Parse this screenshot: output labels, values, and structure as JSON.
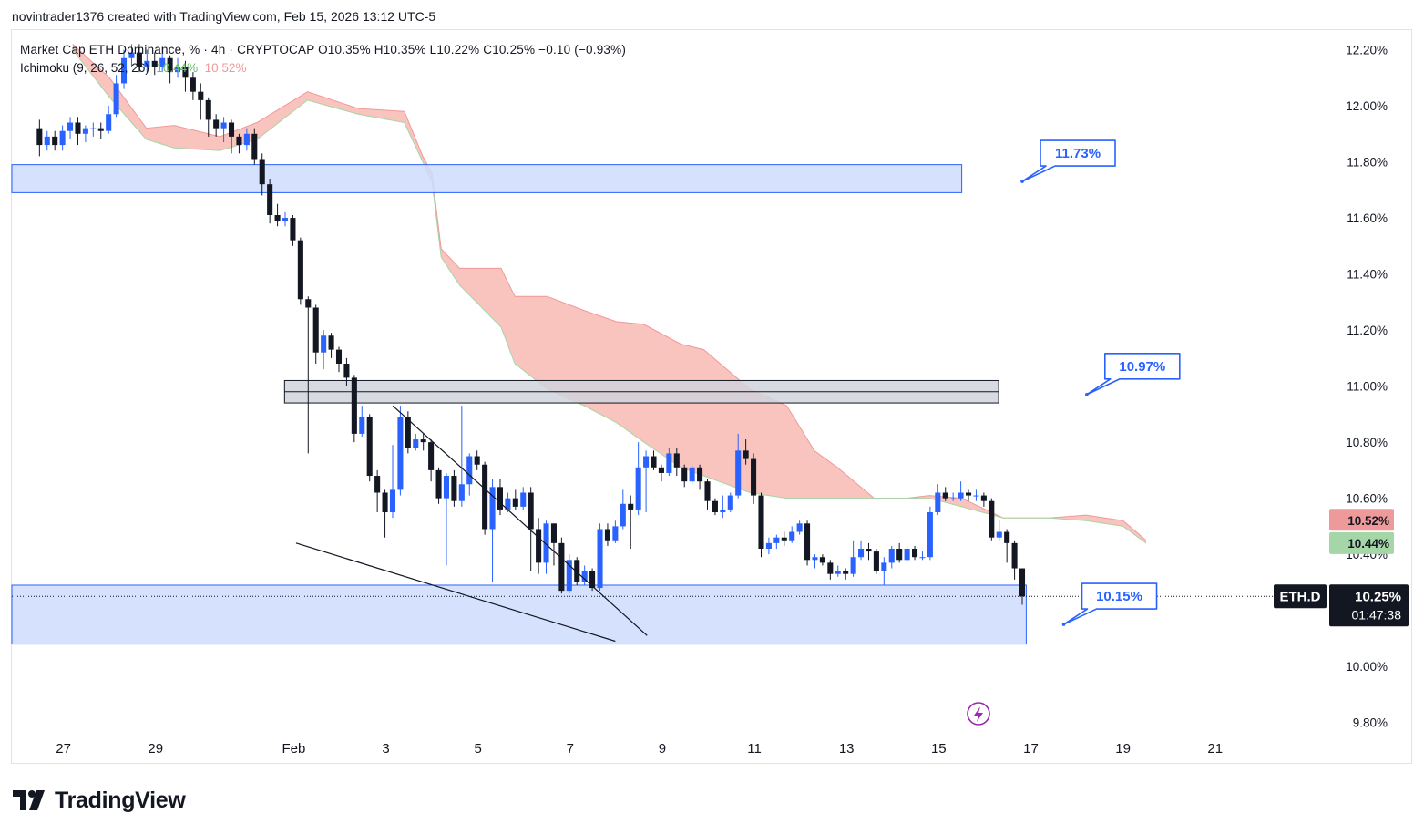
{
  "credit": "novintrader1376 created with TradingView.com, Feb 15, 2026 13:12 UTC-5",
  "legend": {
    "line1": "Market Cap ETH Dominance, % · 4h · CRYPTOCAP  O10.35%  H10.35%  L10.22%  C10.25%  −0.10 (−0.93%)",
    "ichimoku_label": "Ichimoku (9, 26, 52, 26)",
    "ichimoku_v1": "10.44%",
    "ichimoku_v2": "10.52%"
  },
  "logo_text": "TradingView",
  "colors": {
    "up": "#2962ff",
    "down": "#131722",
    "cloud_bear": "#f8b9b3",
    "cloud_bull": "#c8e6c9",
    "zone": "#cfdcfd",
    "zone_border": "#2962ff"
  },
  "chart_data": {
    "type": "candlestick",
    "symbol": "ETH.D",
    "title": "Market Cap ETH Dominance, % · 4h · CRYPTOCAP",
    "timeframe": "4h",
    "ohlc_last": {
      "open": 10.35,
      "high": 10.35,
      "low": 10.22,
      "close": 10.25,
      "change": -0.1,
      "change_pct": -0.93
    },
    "y_ticks": [
      "12.20%",
      "12.00%",
      "11.80%",
      "11.60%",
      "11.40%",
      "11.20%",
      "11.00%",
      "10.80%",
      "10.60%",
      "10.40%",
      "10.00%",
      "9.80%"
    ],
    "y_tick_values": [
      12.2,
      12.0,
      11.8,
      11.6,
      11.4,
      11.2,
      11.0,
      10.8,
      10.6,
      10.4,
      10.0,
      9.8
    ],
    "ylim": [
      9.76,
      12.27
    ],
    "x_ticks": [
      "27",
      "29",
      "Feb",
      "3",
      "5",
      "7",
      "9",
      "11",
      "13",
      "15",
      "17",
      "19",
      "21"
    ],
    "x_tick_days": [
      -4,
      -2,
      1,
      3,
      5,
      7,
      9,
      11,
      13,
      15,
      17,
      19,
      21
    ],
    "xlim_days": [
      -5.12,
      23.3
    ],
    "price_labels": {
      "symbol": "ETH.D",
      "last": "10.25%",
      "countdown": "01:47:38",
      "ichimoku_a": "10.52%",
      "ichimoku_b": "10.44%"
    },
    "zones": [
      {
        "name": "supply-zone-upper",
        "from_day": -5.12,
        "to_day": 15.5,
        "top": 11.79,
        "bottom": 11.69
      },
      {
        "name": "resistance-zone-mid",
        "from_day": 0.8,
        "to_day": 16.3,
        "top": 11.02,
        "bottom": 10.94
      },
      {
        "name": "demand-zone-lower",
        "from_day": -5.12,
        "to_day": 16.9,
        "top": 10.29,
        "bottom": 10.08
      }
    ],
    "callouts": [
      {
        "text": "11.73%",
        "value": 11.73,
        "day": 18.0
      },
      {
        "text": "10.97%",
        "value": 10.97,
        "day": 19.4
      },
      {
        "text": "10.15%",
        "value": 10.15,
        "day": 18.9
      }
    ],
    "trendlines": [
      {
        "name": "wedge-upper-line",
        "d1": 3.15,
        "v1": 10.93,
        "d2": 8.67,
        "v2": 10.11
      },
      {
        "name": "wedge-lower-line",
        "d1": 1.05,
        "v1": 10.44,
        "d2": 7.98,
        "v2": 10.09
      }
    ],
    "cloud": {
      "days": [
        -3.8,
        -3.0,
        -2.2,
        -1.6,
        -0.6,
        0.2,
        1.3,
        2.4,
        3.4,
        3.8,
        4.0,
        4.2,
        4.6,
        5.5,
        5.8,
        6.5,
        7.3,
        8.0,
        8.6,
        9.4,
        9.9,
        10.9,
        11.7,
        12.3,
        12.8,
        13.6,
        14.3,
        14.8,
        15.5,
        16.4,
        17.4,
        18.2,
        19.0,
        19.5
      ],
      "span_a": [
        12.22,
        12.1,
        11.92,
        11.93,
        11.89,
        11.94,
        12.05,
        11.99,
        11.98,
        11.82,
        11.76,
        11.49,
        11.42,
        11.42,
        11.32,
        11.32,
        11.27,
        11.23,
        11.22,
        11.15,
        11.13,
        10.99,
        10.93,
        10.77,
        10.71,
        10.6,
        10.6,
        10.61,
        10.6,
        10.53,
        10.53,
        10.54,
        10.52,
        10.45
      ],
      "span_b": [
        12.2,
        12.03,
        11.88,
        11.85,
        11.84,
        11.88,
        12.02,
        11.97,
        11.94,
        11.8,
        11.73,
        11.46,
        11.36,
        11.21,
        11.08,
        10.99,
        10.93,
        10.87,
        10.8,
        10.71,
        10.68,
        10.62,
        10.6,
        10.6,
        10.6,
        10.6,
        10.6,
        10.6,
        10.57,
        10.53,
        10.53,
        10.52,
        10.5,
        10.44
      ]
    },
    "candles_ohlc": [
      [
        11.92,
        11.86,
        11.95,
        11.82
      ],
      [
        11.86,
        11.89,
        11.91,
        11.84
      ],
      [
        11.89,
        11.86,
        11.91,
        11.84
      ],
      [
        11.86,
        11.91,
        11.93,
        11.84
      ],
      [
        11.91,
        11.94,
        11.96,
        11.88
      ],
      [
        11.94,
        11.9,
        11.96,
        11.86
      ],
      [
        11.9,
        11.92,
        11.93,
        11.87
      ],
      [
        11.92,
        11.92,
        11.94,
        11.89
      ],
      [
        11.92,
        11.91,
        11.94,
        11.88
      ],
      [
        11.91,
        11.97,
        12.0,
        11.9
      ],
      [
        11.97,
        12.08,
        12.11,
        11.96
      ],
      [
        12.08,
        12.17,
        12.2,
        12.06
      ],
      [
        12.17,
        12.19,
        12.22,
        12.14
      ],
      [
        12.19,
        12.14,
        12.22,
        12.12
      ],
      [
        12.14,
        12.16,
        12.2,
        12.12
      ],
      [
        12.16,
        12.14,
        12.19,
        12.11
      ],
      [
        12.14,
        12.17,
        12.21,
        12.12
      ],
      [
        12.17,
        12.12,
        12.18,
        12.08
      ],
      [
        12.12,
        12.14,
        12.17,
        12.1
      ],
      [
        12.14,
        12.1,
        12.16,
        12.05
      ],
      [
        12.1,
        12.05,
        12.12,
        12.02
      ],
      [
        12.05,
        12.02,
        12.08,
        11.95
      ],
      [
        12.02,
        11.95,
        12.03,
        11.89
      ],
      [
        11.95,
        11.92,
        11.97,
        11.89
      ],
      [
        11.92,
        11.94,
        11.96,
        11.87
      ],
      [
        11.94,
        11.89,
        11.95,
        11.83
      ],
      [
        11.89,
        11.86,
        11.9,
        11.83
      ],
      [
        11.86,
        11.9,
        11.92,
        11.84
      ],
      [
        11.9,
        11.81,
        11.92,
        11.79
      ],
      [
        11.81,
        11.72,
        11.83,
        11.68
      ],
      [
        11.72,
        11.61,
        11.74,
        11.58
      ],
      [
        11.61,
        11.59,
        11.65,
        11.57
      ],
      [
        11.59,
        11.6,
        11.62,
        11.57
      ],
      [
        11.6,
        11.52,
        11.61,
        11.5
      ],
      [
        11.52,
        11.31,
        11.53,
        11.29
      ],
      [
        11.31,
        11.28,
        11.32,
        10.76
      ],
      [
        11.28,
        11.12,
        11.29,
        11.08
      ],
      [
        11.12,
        11.18,
        11.2,
        11.06
      ],
      [
        11.18,
        11.13,
        11.19,
        11.1
      ],
      [
        11.13,
        11.08,
        11.14,
        11.05
      ],
      [
        11.08,
        11.03,
        11.1,
        11.0
      ],
      [
        11.03,
        10.83,
        11.04,
        10.8
      ],
      [
        10.83,
        10.89,
        10.93,
        10.82
      ],
      [
        10.89,
        10.68,
        10.9,
        10.66
      ],
      [
        10.68,
        10.62,
        10.7,
        10.55
      ],
      [
        10.62,
        10.55,
        10.63,
        10.46
      ],
      [
        10.55,
        10.63,
        10.79,
        10.53
      ],
      [
        10.63,
        10.89,
        10.93,
        10.61
      ],
      [
        10.89,
        10.78,
        10.91,
        10.76
      ],
      [
        10.78,
        10.81,
        10.83,
        10.77
      ],
      [
        10.81,
        10.8,
        10.83,
        10.77
      ],
      [
        10.8,
        10.7,
        10.81,
        10.66
      ],
      [
        10.7,
        10.6,
        10.71,
        10.58
      ],
      [
        10.6,
        10.68,
        10.69,
        10.36
      ],
      [
        10.68,
        10.59,
        10.7,
        10.57
      ],
      [
        10.59,
        10.65,
        10.93,
        10.57
      ],
      [
        10.65,
        10.75,
        10.76,
        10.61
      ],
      [
        10.75,
        10.72,
        10.77,
        10.7
      ],
      [
        10.72,
        10.49,
        10.73,
        10.47
      ],
      [
        10.49,
        10.64,
        10.67,
        10.3
      ],
      [
        10.64,
        10.56,
        10.67,
        10.54
      ],
      [
        10.56,
        10.6,
        10.62,
        10.55
      ],
      [
        10.6,
        10.57,
        10.63,
        10.56
      ],
      [
        10.57,
        10.62,
        10.64,
        10.56
      ],
      [
        10.62,
        10.49,
        10.64,
        10.34
      ],
      [
        10.49,
        10.37,
        10.53,
        10.33
      ],
      [
        10.37,
        10.51,
        10.52,
        10.33
      ],
      [
        10.51,
        10.44,
        10.51,
        10.36
      ],
      [
        10.44,
        10.27,
        10.46,
        10.26
      ],
      [
        10.27,
        10.38,
        10.4,
        10.26
      ],
      [
        10.38,
        10.3,
        10.39,
        10.29
      ],
      [
        10.3,
        10.34,
        10.36,
        10.29
      ],
      [
        10.34,
        10.28,
        10.35,
        10.27
      ],
      [
        10.28,
        10.49,
        10.51,
        10.27
      ],
      [
        10.49,
        10.45,
        10.51,
        10.43
      ],
      [
        10.45,
        10.5,
        10.52,
        10.44
      ],
      [
        10.5,
        10.58,
        10.63,
        10.49
      ],
      [
        10.58,
        10.56,
        10.61,
        10.42
      ],
      [
        10.56,
        10.71,
        10.8,
        10.54
      ],
      [
        10.71,
        10.75,
        10.77,
        10.55
      ],
      [
        10.75,
        10.71,
        10.77,
        10.7
      ],
      [
        10.71,
        10.69,
        10.72,
        10.66
      ],
      [
        10.69,
        10.76,
        10.78,
        10.68
      ],
      [
        10.76,
        10.71,
        10.78,
        10.68
      ],
      [
        10.71,
        10.66,
        10.72,
        10.64
      ],
      [
        10.66,
        10.71,
        10.72,
        10.65
      ],
      [
        10.71,
        10.66,
        10.72,
        10.63
      ],
      [
        10.66,
        10.59,
        10.67,
        10.56
      ],
      [
        10.59,
        10.55,
        10.6,
        10.54
      ],
      [
        10.55,
        10.56,
        10.61,
        10.53
      ],
      [
        10.56,
        10.61,
        10.62,
        10.55
      ],
      [
        10.61,
        10.77,
        10.83,
        10.6
      ],
      [
        10.77,
        10.74,
        10.81,
        10.72
      ],
      [
        10.74,
        10.61,
        10.76,
        10.58
      ],
      [
        10.61,
        10.42,
        10.62,
        10.39
      ],
      [
        10.42,
        10.44,
        10.46,
        10.4
      ],
      [
        10.44,
        10.46,
        10.47,
        10.42
      ],
      [
        10.46,
        10.45,
        10.48,
        10.43
      ],
      [
        10.45,
        10.48,
        10.5,
        10.44
      ],
      [
        10.48,
        10.51,
        10.52,
        10.47
      ],
      [
        10.51,
        10.38,
        10.52,
        10.36
      ],
      [
        10.38,
        10.39,
        10.4,
        10.35
      ],
      [
        10.39,
        10.37,
        10.4,
        10.36
      ],
      [
        10.37,
        10.33,
        10.38,
        10.31
      ],
      [
        10.33,
        10.34,
        10.36,
        10.32
      ],
      [
        10.34,
        10.33,
        10.35,
        10.31
      ],
      [
        10.33,
        10.39,
        10.45,
        10.32
      ],
      [
        10.39,
        10.42,
        10.45,
        10.38
      ],
      [
        10.42,
        10.41,
        10.44,
        10.38
      ],
      [
        10.41,
        10.34,
        10.42,
        10.33
      ],
      [
        10.34,
        10.37,
        10.39,
        10.29
      ],
      [
        10.37,
        10.42,
        10.43,
        10.35
      ],
      [
        10.42,
        10.38,
        10.44,
        10.37
      ],
      [
        10.38,
        10.42,
        10.43,
        10.37
      ],
      [
        10.42,
        10.39,
        10.43,
        10.38
      ],
      [
        10.39,
        10.39,
        10.41,
        10.38
      ],
      [
        10.39,
        10.55,
        10.57,
        10.38
      ],
      [
        10.55,
        10.62,
        10.65,
        10.54
      ],
      [
        10.62,
        10.6,
        10.64,
        10.59
      ],
      [
        10.6,
        10.6,
        10.62,
        10.59
      ],
      [
        10.6,
        10.62,
        10.66,
        10.59
      ],
      [
        10.62,
        10.61,
        10.63,
        10.59
      ],
      [
        10.61,
        10.61,
        10.63,
        10.59
      ],
      [
        10.61,
        10.59,
        10.62,
        10.57
      ],
      [
        10.59,
        10.46,
        10.6,
        10.45
      ],
      [
        10.46,
        10.48,
        10.52,
        10.45
      ],
      [
        10.48,
        10.44,
        10.49,
        10.37
      ],
      [
        10.44,
        10.35,
        10.45,
        10.31
      ],
      [
        10.35,
        10.25,
        10.35,
        10.22
      ]
    ]
  }
}
